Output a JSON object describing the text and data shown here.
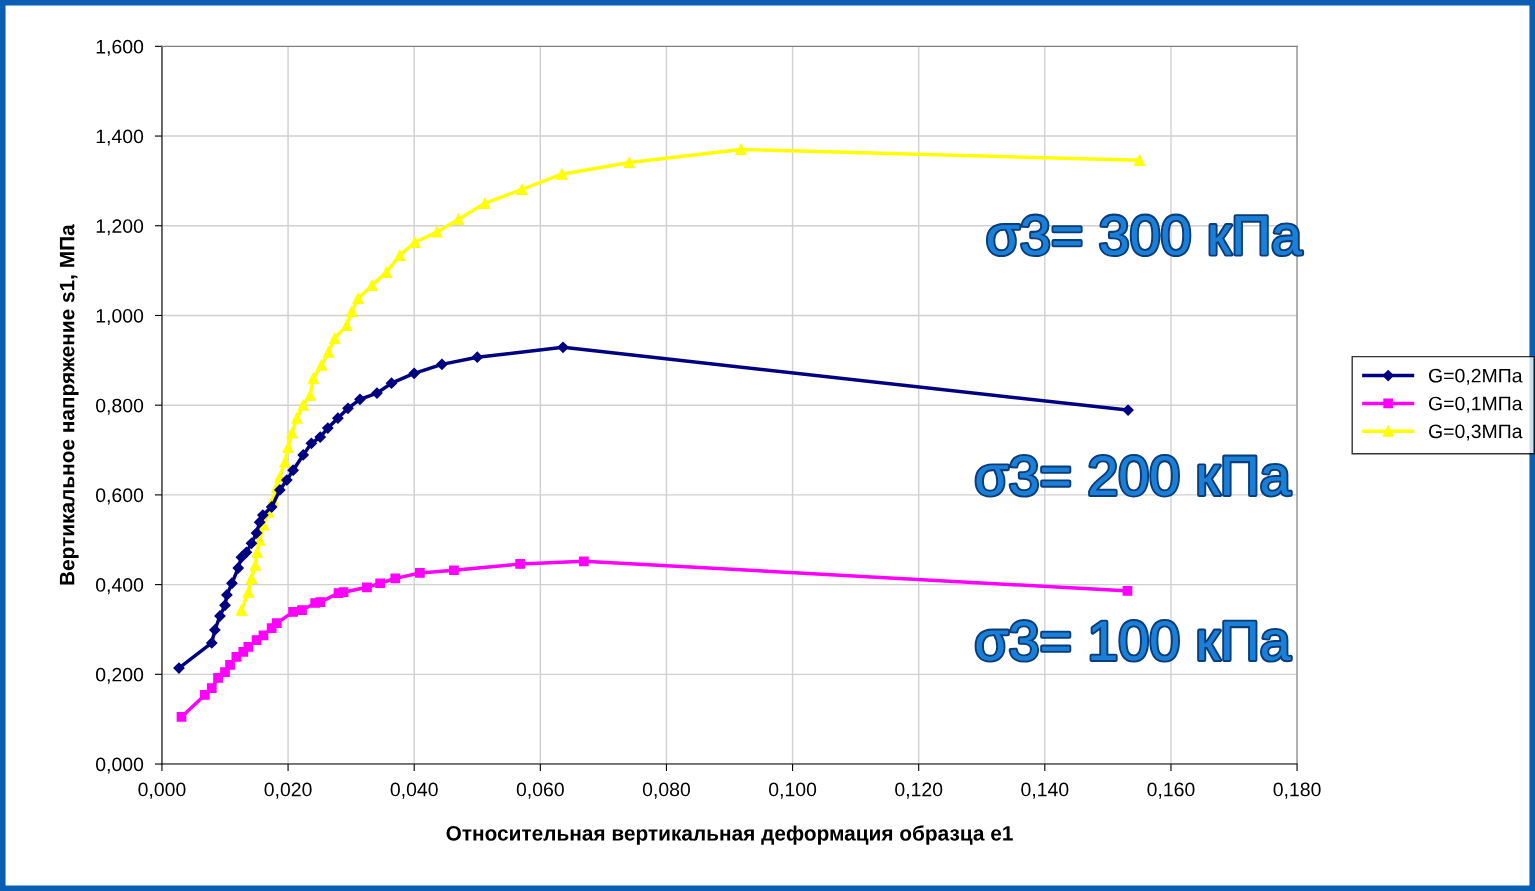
{
  "chart_data": {
    "type": "line",
    "xlabel": "Относительная вертикальная деформация образца e1",
    "ylabel": "Вертикальное напряжение s1, МПа",
    "xlim": [
      0,
      0.18
    ],
    "ylim": [
      0,
      1.6
    ],
    "xticks": [
      {
        "value": 0,
        "label": "0,000"
      },
      {
        "value": 0.02,
        "label": "0,020"
      },
      {
        "value": 0.04,
        "label": "0,040"
      },
      {
        "value": 0.06,
        "label": "0,060"
      },
      {
        "value": 0.08,
        "label": "0,080"
      },
      {
        "value": 0.1,
        "label": "0,100"
      },
      {
        "value": 0.12,
        "label": "0,120"
      },
      {
        "value": 0.14,
        "label": "0,140"
      },
      {
        "value": 0.16,
        "label": "0,160"
      },
      {
        "value": 0.18,
        "label": "0,180"
      }
    ],
    "yticks": [
      {
        "value": 0,
        "label": "0,000"
      },
      {
        "value": 0.2,
        "label": "0,200"
      },
      {
        "value": 0.4,
        "label": "0,400"
      },
      {
        "value": 0.6,
        "label": "0,600"
      },
      {
        "value": 0.8,
        "label": "0,800"
      },
      {
        "value": 1.0,
        "label": "1,000"
      },
      {
        "value": 1.2,
        "label": "1,200"
      },
      {
        "value": 1.4,
        "label": "1,400"
      },
      {
        "value": 1.6,
        "label": "1,600"
      }
    ],
    "grid": true,
    "legend": "right",
    "line_style": "solid",
    "annotations": [
      "σ3= 300 кПа",
      "σ3= 200 кПа",
      "σ3= 100 кПа"
    ],
    "series": [
      {
        "name": "G=0,2МПа",
        "color": "#000080",
        "marker": "diamond",
        "x": [
          0.0027,
          0.0079,
          0.0084,
          0.0092,
          0.01,
          0.0103,
          0.0111,
          0.0121,
          0.0126,
          0.0134,
          0.0142,
          0.015,
          0.0155,
          0.016,
          0.0174,
          0.0187,
          0.0198,
          0.0208,
          0.0224,
          0.0237,
          0.0251,
          0.0263,
          0.0279,
          0.0295,
          0.0314,
          0.0341,
          0.0364,
          0.04,
          0.0444,
          0.05,
          0.0636,
          0.1532
        ],
        "values": [
          0.214,
          0.27,
          0.299,
          0.33,
          0.354,
          0.377,
          0.403,
          0.437,
          0.461,
          0.472,
          0.492,
          0.515,
          0.539,
          0.555,
          0.573,
          0.611,
          0.633,
          0.655,
          0.689,
          0.715,
          0.729,
          0.749,
          0.771,
          0.793,
          0.813,
          0.827,
          0.849,
          0.871,
          0.891,
          0.907,
          0.929,
          0.789
        ]
      },
      {
        "name": "G=0,1МПа",
        "color": "#ff00ff",
        "marker": "square",
        "x": [
          0.0031,
          0.0068,
          0.0079,
          0.0089,
          0.01,
          0.0108,
          0.0118,
          0.0129,
          0.0137,
          0.015,
          0.0161,
          0.0174,
          0.0182,
          0.0208,
          0.0222,
          0.0243,
          0.0251,
          0.028,
          0.0288,
          0.0325,
          0.0346,
          0.037,
          0.0409,
          0.0463,
          0.0568,
          0.0669,
          0.1531
        ],
        "values": [
          0.105,
          0.154,
          0.169,
          0.192,
          0.205,
          0.221,
          0.239,
          0.25,
          0.261,
          0.276,
          0.287,
          0.303,
          0.314,
          0.339,
          0.343,
          0.359,
          0.361,
          0.381,
          0.383,
          0.394,
          0.403,
          0.414,
          0.426,
          0.432,
          0.446,
          0.452,
          0.386
        ]
      },
      {
        "name": "G=0,3МПа",
        "color": "#ffff00",
        "marker": "triangle",
        "x": [
          0.0126,
          0.0137,
          0.0142,
          0.0148,
          0.0151,
          0.0155,
          0.0161,
          0.0169,
          0.0176,
          0.0182,
          0.0187,
          0.0195,
          0.02,
          0.0206,
          0.0214,
          0.0224,
          0.0235,
          0.024,
          0.0253,
          0.0264,
          0.0274,
          0.0293,
          0.0301,
          0.0311,
          0.0333,
          0.0356,
          0.0377,
          0.0401,
          0.0436,
          0.047,
          0.0512,
          0.0571,
          0.0634,
          0.0741,
          0.0918,
          0.155
        ],
        "values": [
          0.343,
          0.383,
          0.414,
          0.443,
          0.472,
          0.499,
          0.533,
          0.562,
          0.588,
          0.617,
          0.64,
          0.673,
          0.706,
          0.738,
          0.771,
          0.8,
          0.822,
          0.86,
          0.889,
          0.918,
          0.949,
          0.978,
          1.009,
          1.038,
          1.067,
          1.096,
          1.134,
          1.163,
          1.186,
          1.214,
          1.25,
          1.281,
          1.315,
          1.341,
          1.37,
          1.346
        ]
      }
    ]
  }
}
